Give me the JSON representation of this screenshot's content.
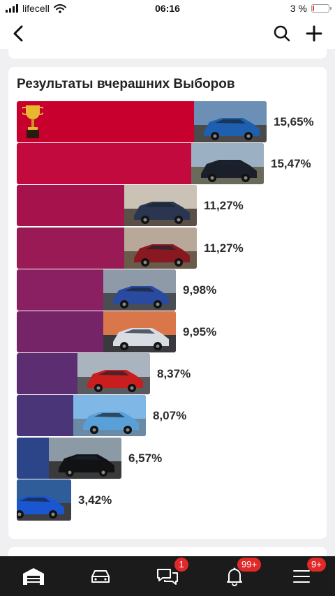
{
  "status_bar": {
    "carrier": "lifecell",
    "time": "06:16",
    "battery_text": "3 %",
    "battery_level": 0.03,
    "battery_color": "#e23b3b"
  },
  "top_bar": {
    "back_icon": "chevron-left-icon",
    "search_icon": "search-icon",
    "add_icon": "plus-icon"
  },
  "card": {
    "title": "Результаты вчерашних Выборов",
    "trophy_icon": "trophy-icon"
  },
  "chart_data": {
    "type": "bar",
    "orientation": "horizontal",
    "values": [
      15.65,
      15.47,
      11.27,
      11.27,
      9.98,
      9.95,
      8.37,
      8.07,
      6.57,
      3.42
    ],
    "labels": [
      "15,65%",
      "15,47%",
      "11,27%",
      "11,27%",
      "9,98%",
      "9,95%",
      "8,37%",
      "8,07%",
      "6,57%",
      "3,42%"
    ],
    "colors": [
      "#c8002e",
      "#c20a3e",
      "#a6124c",
      "#9a1a55",
      "#8a1f62",
      "#752468",
      "#5c2d70",
      "#4a3578",
      "#2c4488",
      "#1f4b94"
    ],
    "xlim": [
      0,
      15.65
    ],
    "grid": false
  },
  "tab_bar": {
    "items": [
      {
        "icon": "garage-icon",
        "badge": ""
      },
      {
        "icon": "car-icon",
        "badge": ""
      },
      {
        "icon": "chat-icon",
        "badge": "1"
      },
      {
        "icon": "bell-icon",
        "badge": "99+"
      },
      {
        "icon": "menu-icon",
        "badge": "9+"
      }
    ],
    "badge_color": "#e02a2a"
  }
}
